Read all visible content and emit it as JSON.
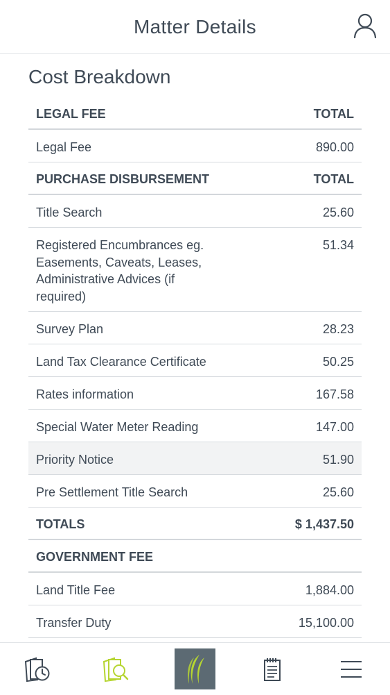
{
  "header": {
    "title": "Matter Details",
    "profile_icon": "user-icon"
  },
  "section_title": "Cost Breakdown",
  "rows": [
    {
      "type": "head",
      "label": "LEGAL FEE",
      "value": "TOTAL"
    },
    {
      "type": "item",
      "label": "Legal Fee",
      "value": "890.00"
    },
    {
      "type": "head",
      "label": "PURCHASE DISBURSEMENT",
      "value": "TOTAL"
    },
    {
      "type": "item",
      "label": "Title Search",
      "value": "25.60"
    },
    {
      "type": "item",
      "label": "Registered Encumbrances eg. Easements, Caveats, Leases, Administrative Advices (if required)",
      "value": "51.34"
    },
    {
      "type": "item",
      "label": "Survey Plan",
      "value": "28.23"
    },
    {
      "type": "item",
      "label": "Land Tax Clearance Certificate",
      "value": "50.25"
    },
    {
      "type": "item",
      "label": "Rates information",
      "value": "167.58"
    },
    {
      "type": "item",
      "label": "Special Water Meter Reading",
      "value": "147.00"
    },
    {
      "type": "item",
      "label": "Priority Notice",
      "value": "51.90",
      "highlighted": true
    },
    {
      "type": "item",
      "label": "Pre Settlement Title Search",
      "value": "25.60"
    },
    {
      "type": "head",
      "label": "TOTALS",
      "value": "$ 1,437.50"
    },
    {
      "type": "head",
      "label": "GOVERNMENT FEE",
      "value": ""
    },
    {
      "type": "item",
      "label": "Land Title Fee",
      "value": "1,884.00"
    },
    {
      "type": "item",
      "label": "Transfer Duty",
      "value": "15,100.00"
    }
  ],
  "tabbar": {
    "items": [
      {
        "icon": "matter-history-icon",
        "active": false
      },
      {
        "icon": "matter-search-icon",
        "active": true
      },
      {
        "icon": "brand-logo-icon",
        "active": false
      },
      {
        "icon": "notes-icon",
        "active": false
      },
      {
        "icon": "menu-icon",
        "active": false
      }
    ]
  },
  "colors": {
    "text": "#3f4a56",
    "accent_green": "#b6d531",
    "logo_bg": "#5c6a73",
    "row_highlight": "#f2f3f4"
  }
}
